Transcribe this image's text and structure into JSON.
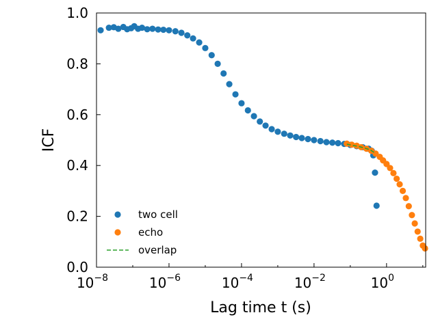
{
  "chart_data": {
    "type": "scatter",
    "x_scale": "log",
    "x_range": [
      1e-08,
      12
    ],
    "y_range": [
      0.0,
      1.0
    ],
    "xlabel": "Lag time t (s)",
    "ylabel": "ICF",
    "grid": false,
    "legend_position": "bottom-left",
    "x_ticks": [
      {
        "value": 1e-08,
        "base": "10",
        "exp": "−8"
      },
      {
        "value": 1e-06,
        "base": "10",
        "exp": "−6"
      },
      {
        "value": 0.0001,
        "base": "10",
        "exp": "−4"
      },
      {
        "value": 0.01,
        "base": "10",
        "exp": "−2"
      },
      {
        "value": 1,
        "base": "10",
        "exp": "0"
      }
    ],
    "y_ticks": [
      {
        "value": 0.0,
        "label": "0.0"
      },
      {
        "value": 0.2,
        "label": "0.2"
      },
      {
        "value": 0.4,
        "label": "0.4"
      },
      {
        "value": 0.6,
        "label": "0.6"
      },
      {
        "value": 0.8,
        "label": "0.8"
      },
      {
        "value": 1.0,
        "label": "1.0"
      }
    ],
    "series": [
      {
        "name": "two cell",
        "kind": "scatter",
        "color": "#1f77b4",
        "points": [
          [
            1.3e-08,
            0.932
          ],
          [
            2.2e-08,
            0.942
          ],
          [
            3e-08,
            0.944
          ],
          [
            4e-08,
            0.938
          ],
          [
            5.5e-08,
            0.945
          ],
          [
            7e-08,
            0.936
          ],
          [
            9e-08,
            0.94
          ],
          [
            1.1e-07,
            0.948
          ],
          [
            1.4e-07,
            0.938
          ],
          [
            1.8e-07,
            0.942
          ],
          [
            2.5e-07,
            0.936
          ],
          [
            3.5e-07,
            0.938
          ],
          [
            5e-07,
            0.935
          ],
          [
            7e-07,
            0.934
          ],
          [
            1e-06,
            0.932
          ],
          [
            1.5e-06,
            0.928
          ],
          [
            2.2e-06,
            0.922
          ],
          [
            3.2e-06,
            0.912
          ],
          [
            4.6e-06,
            0.9
          ],
          [
            6.8e-06,
            0.884
          ],
          [
            1e-05,
            0.862
          ],
          [
            1.5e-05,
            0.834
          ],
          [
            2.2e-05,
            0.8
          ],
          [
            3.2e-05,
            0.762
          ],
          [
            4.6e-05,
            0.72
          ],
          [
            6.8e-05,
            0.68
          ],
          [
            0.0001,
            0.645
          ],
          [
            0.00015,
            0.617
          ],
          [
            0.00022,
            0.594
          ],
          [
            0.00032,
            0.573
          ],
          [
            0.00046,
            0.557
          ],
          [
            0.00068,
            0.543
          ],
          [
            0.001,
            0.533
          ],
          [
            0.0015,
            0.525
          ],
          [
            0.0022,
            0.518
          ],
          [
            0.0032,
            0.512
          ],
          [
            0.0046,
            0.508
          ],
          [
            0.0068,
            0.504
          ],
          [
            0.01,
            0.5
          ],
          [
            0.015,
            0.496
          ],
          [
            0.022,
            0.492
          ],
          [
            0.032,
            0.49
          ],
          [
            0.046,
            0.488
          ],
          [
            0.068,
            0.485
          ],
          [
            0.1,
            0.481
          ],
          [
            0.15,
            0.476
          ],
          [
            0.22,
            0.472
          ],
          [
            0.32,
            0.466
          ],
          [
            0.39,
            0.458
          ],
          [
            0.43,
            0.44
          ],
          [
            0.48,
            0.372
          ],
          [
            0.53,
            0.242
          ]
        ]
      },
      {
        "name": "echo",
        "kind": "scatter",
        "color": "#ff7f0e",
        "points": [
          [
            0.08,
            0.486
          ],
          [
            0.11,
            0.482
          ],
          [
            0.15,
            0.478
          ],
          [
            0.2,
            0.472
          ],
          [
            0.28,
            0.466
          ],
          [
            0.38,
            0.458
          ],
          [
            0.5,
            0.447
          ],
          [
            0.65,
            0.434
          ],
          [
            0.8,
            0.42
          ],
          [
            1.0,
            0.406
          ],
          [
            1.25,
            0.39
          ],
          [
            1.55,
            0.37
          ],
          [
            1.9,
            0.348
          ],
          [
            2.3,
            0.326
          ],
          [
            2.8,
            0.3
          ],
          [
            3.4,
            0.272
          ],
          [
            4.1,
            0.24
          ],
          [
            5.0,
            0.205
          ],
          [
            6.0,
            0.172
          ],
          [
            7.2,
            0.14
          ],
          [
            8.5,
            0.112
          ],
          [
            10.0,
            0.085
          ],
          [
            11.5,
            0.074
          ]
        ]
      },
      {
        "name": "overlap",
        "kind": "dashed-line",
        "color": "#2ca02c",
        "points": [
          [
            0.08,
            0.484
          ],
          [
            0.12,
            0.479
          ],
          [
            0.18,
            0.474
          ],
          [
            0.26,
            0.468
          ],
          [
            0.36,
            0.461
          ],
          [
            0.45,
            0.452
          ]
        ]
      }
    ]
  }
}
